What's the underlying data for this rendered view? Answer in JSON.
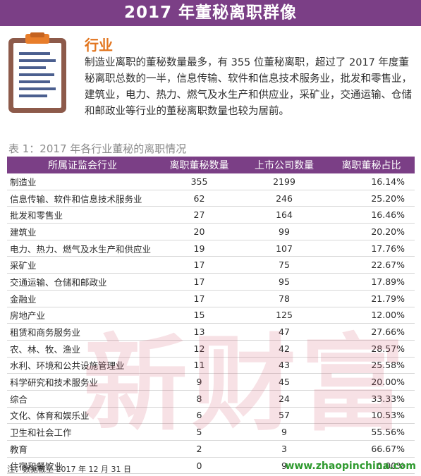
{
  "header": {
    "title": "2017 年董秘离职群像"
  },
  "intro": {
    "title": "行业",
    "text": "制造业离职的董秘数量最多，有 355 位董秘离职，超过了 2017 年度董秘离职总数的一半，信息传输、软件和信息技术服务业，批发和零售业，建筑业，电力、热力、燃气及水生产和供应业，采矿业，交通运输、仓储和邮政业等行业的董秘离职数量也较为居前。"
  },
  "table": {
    "caption": "表 1：2017 年各行业董秘的离职情况",
    "headers": [
      "所属证监会行业",
      "离职董秘数量",
      "上市公司数量",
      "离职董秘占比"
    ],
    "rows": [
      [
        "制造业",
        "355",
        "2199",
        "16.14%"
      ],
      [
        "信息传输、软件和信息技术服务业",
        "62",
        "246",
        "25.20%"
      ],
      [
        "批发和零售业",
        "27",
        "164",
        "16.46%"
      ],
      [
        "建筑业",
        "20",
        "99",
        "20.20%"
      ],
      [
        "电力、热力、燃气及水生产和供应业",
        "19",
        "107",
        "17.76%"
      ],
      [
        "采矿业",
        "17",
        "75",
        "22.67%"
      ],
      [
        "交通运输、仓储和邮政业",
        "17",
        "95",
        "17.89%"
      ],
      [
        "金融业",
        "17",
        "78",
        "21.79%"
      ],
      [
        "房地产业",
        "15",
        "125",
        "12.00%"
      ],
      [
        "租赁和商务服务业",
        "13",
        "47",
        "27.66%"
      ],
      [
        "农、林、牧、渔业",
        "12",
        "42",
        "28.57%"
      ],
      [
        "水利、环境和公共设施管理业",
        "11",
        "43",
        "25.58%"
      ],
      [
        "科学研究和技术服务业",
        "9",
        "45",
        "20.00%"
      ],
      [
        "综合",
        "8",
        "24",
        "33.33%"
      ],
      [
        "文化、体育和娱乐业",
        "6",
        "57",
        "10.53%"
      ],
      [
        "卫生和社会工作",
        "5",
        "9",
        "55.56%"
      ],
      [
        "教育",
        "2",
        "3",
        "66.67%"
      ],
      [
        "住宿和餐饮业",
        "0",
        "9",
        "0.00%"
      ]
    ]
  },
  "footer": {
    "note": "注：数据截至 2017 年 12 月 31 日",
    "site": "www.zhaopinchina.com"
  },
  "watermark": {
    "text": "新财富"
  },
  "icons": {
    "clipboard": "clipboard-icon"
  },
  "colors": {
    "accent": "#7b3f86",
    "title": "#e2751e",
    "site": "#2e9a2e"
  }
}
